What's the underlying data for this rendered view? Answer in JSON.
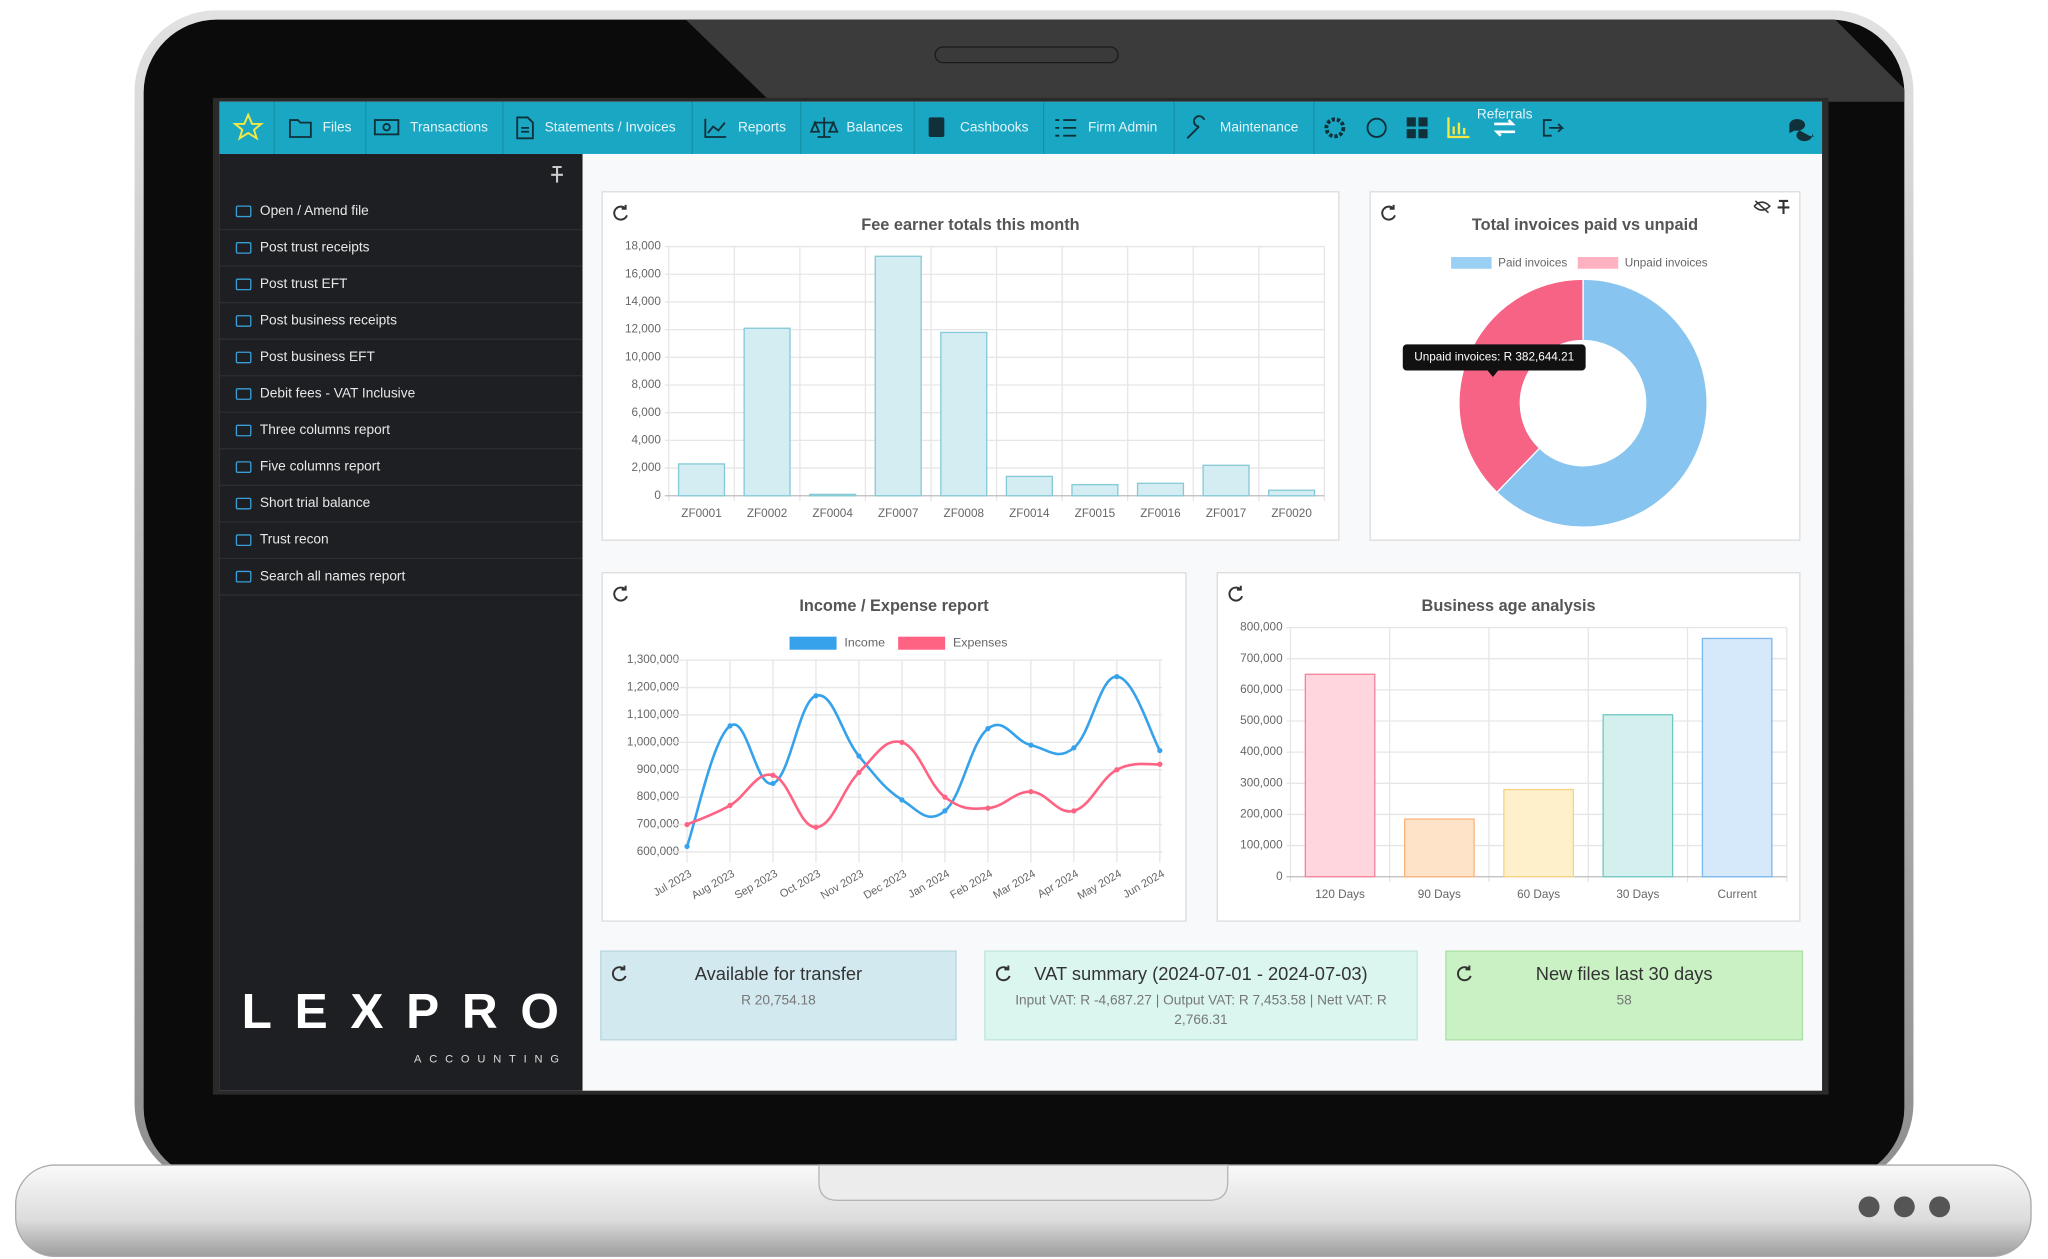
{
  "nav": {
    "items": [
      "Files",
      "Transactions",
      "Statements / Invoices",
      "Reports",
      "Balances",
      "Cashbooks",
      "Firm Admin",
      "Maintenance"
    ],
    "referrals": "Referrals"
  },
  "sidebar": {
    "items": [
      "Open / Amend file",
      "Post trust receipts",
      "Post trust EFT",
      "Post business receipts",
      "Post business EFT",
      "Debit fees - VAT Inclusive",
      "Three columns report",
      "Five columns report",
      "Short trial balance",
      "Trust recon",
      "Search all names report"
    ],
    "logo": "LEXPRO",
    "tagline": "ACCOUNTING"
  },
  "chart_data": [
    {
      "type": "bar",
      "title": "Fee earner totals this month",
      "categories": [
        "ZF0001",
        "ZF0002",
        "ZF0004",
        "ZF0007",
        "ZF0008",
        "ZF0014",
        "ZF0015",
        "ZF0016",
        "ZF0017",
        "ZF0020"
      ],
      "values": [
        2300,
        12100,
        100,
        17300,
        11800,
        1400,
        800,
        900,
        2200,
        400
      ],
      "color": "#d3edf2",
      "edge_color": "#85c9d6",
      "ylim": [
        0,
        18000
      ],
      "yticks": [
        0,
        {
          "value": 2000,
          "label": "2,000"
        },
        {
          "value": 4000,
          "label": "4,000"
        },
        {
          "value": 6000,
          "label": "6,000"
        },
        {
          "value": 8000,
          "label": "8,000"
        },
        {
          "value": 10000,
          "label": "10,000"
        },
        {
          "value": 12000,
          "label": "12,000"
        },
        {
          "value": 14000,
          "label": "14,000"
        },
        {
          "value": 16000,
          "label": "16,000"
        },
        {
          "value": 18000,
          "label": "18,000"
        }
      ],
      "grid": true
    },
    {
      "type": "doughnut",
      "title": "Total invoices paid vs unpaid",
      "categories": [
        "Paid invoices",
        "Unpaid invoices"
      ],
      "values": [
        630000,
        382644.21
      ],
      "colors": [
        "#87c5f0",
        "#f66384"
      ],
      "legend_colors": [
        "#9bd0f5",
        "#ffb1c1"
      ],
      "tooltip": "Unpaid invoices: R 382,644.21"
    },
    {
      "type": "line",
      "title": "Income / Expense report",
      "categories": [
        "Jul 2023",
        "Aug 2023",
        "Sep 2023",
        "Oct 2023",
        "Nov 2023",
        "Dec 2023",
        "Jan 2024",
        "Feb 2024",
        "Mar 2024",
        "Apr 2024",
        "May 2024",
        "Jun 2024"
      ],
      "series": [
        {
          "name": "Income",
          "color": "#36a2eb",
          "values": [
            620000,
            1060000,
            850000,
            1170000,
            950000,
            790000,
            750000,
            1050000,
            990000,
            980000,
            1240000,
            970000
          ]
        },
        {
          "name": "Expenses",
          "color": "#ff6384",
          "values": [
            700000,
            770000,
            880000,
            690000,
            890000,
            1000000,
            800000,
            760000,
            820000,
            750000,
            900000,
            920000
          ]
        }
      ],
      "ylim": [
        580000,
        1300000
      ],
      "yticks": [
        {
          "value": 600000,
          "label": "600,000"
        },
        {
          "value": 700000,
          "label": "700,000"
        },
        {
          "value": 800000,
          "label": "800,000"
        },
        {
          "value": 900000,
          "label": "900,000"
        },
        {
          "value": 1000000,
          "label": "1,000,000"
        },
        {
          "value": 1100000,
          "label": "1,100,000"
        },
        {
          "value": 1200000,
          "label": "1,200,000"
        },
        {
          "value": 1300000,
          "label": "1,300,000"
        }
      ],
      "grid": true
    },
    {
      "type": "bar",
      "title": "Business age analysis",
      "categories": [
        "120 Days",
        "90 Days",
        "60 Days",
        "30 Days",
        "Current"
      ],
      "values": [
        650000,
        185000,
        280000,
        520000,
        765000
      ],
      "colors": [
        "#ffd6dd",
        "#ffe3c8",
        "#fff0cc",
        "#d3efee",
        "#d5e9fb"
      ],
      "edge_colors": [
        "#f3829b",
        "#f9b578",
        "#f8d27f",
        "#6fc8c3",
        "#7ab9ef"
      ],
      "ylim": [
        0,
        800000
      ],
      "yticks": [
        0,
        {
          "value": 100000,
          "label": "100,000"
        },
        {
          "value": 200000,
          "label": "200,000"
        },
        {
          "value": 300000,
          "label": "300,000"
        },
        {
          "value": 400000,
          "label": "400,000"
        },
        {
          "value": 500000,
          "label": "500,000"
        },
        {
          "value": 600000,
          "label": "600,000"
        },
        {
          "value": 700000,
          "label": "700,000"
        },
        {
          "value": 800000,
          "label": "800,000"
        }
      ],
      "grid": true
    }
  ],
  "tiles": [
    {
      "title": "Available for transfer",
      "text": "R 20,754.18"
    },
    {
      "title": "VAT summary (2024-07-01 - 2024-07-03)",
      "text": "Input VAT: R -4,687.27 | Output VAT: R 7,453.58 | Nett VAT: R 2,766.31"
    },
    {
      "title": "New files last 30 days",
      "text": "58"
    }
  ]
}
